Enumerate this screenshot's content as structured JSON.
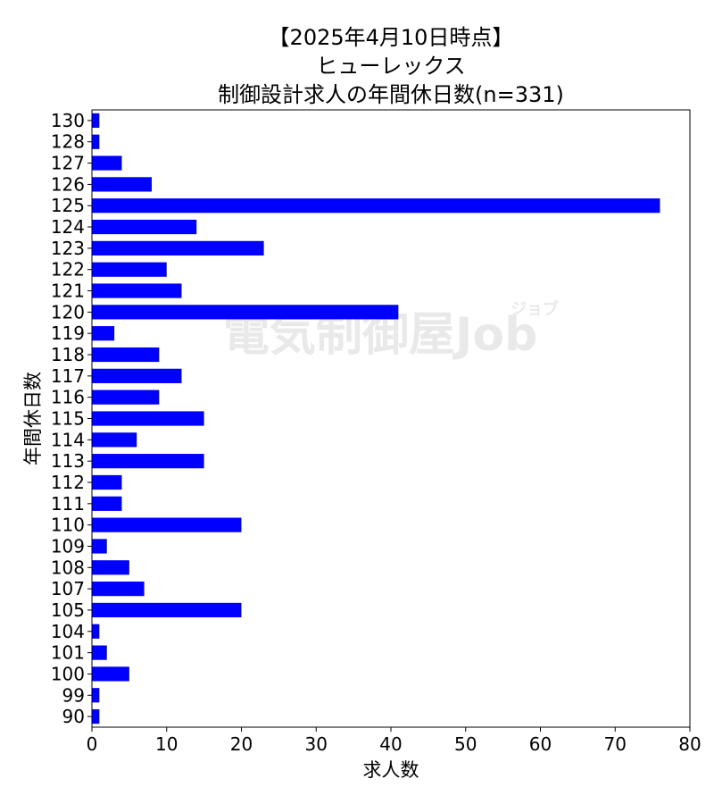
{
  "chart_data": {
    "type": "bar",
    "orientation": "horizontal",
    "title_lines": [
      "【2025年4月10日時点】",
      "ヒューレックス",
      "制御設計求人の年間休日数(n=331)"
    ],
    "xlabel": "求人数",
    "ylabel": "年間休日数",
    "xlim": [
      0,
      80
    ],
    "xticks": [
      0,
      10,
      20,
      30,
      40,
      50,
      60,
      70,
      80
    ],
    "categories": [
      "90",
      "99",
      "100",
      "101",
      "104",
      "105",
      "107",
      "108",
      "109",
      "110",
      "111",
      "112",
      "113",
      "114",
      "115",
      "116",
      "117",
      "118",
      "119",
      "120",
      "121",
      "122",
      "123",
      "124",
      "125",
      "126",
      "127",
      "128",
      "130"
    ],
    "values": [
      1,
      1,
      5,
      2,
      1,
      20,
      7,
      5,
      2,
      20,
      4,
      4,
      15,
      6,
      15,
      9,
      12,
      9,
      3,
      41,
      12,
      10,
      23,
      14,
      76,
      8,
      4,
      1,
      1
    ],
    "bar_color": "#0000ff",
    "grid": false,
    "legend": "none",
    "watermark": {
      "main": "電気制御屋Job",
      "small": "ジョブ"
    }
  }
}
